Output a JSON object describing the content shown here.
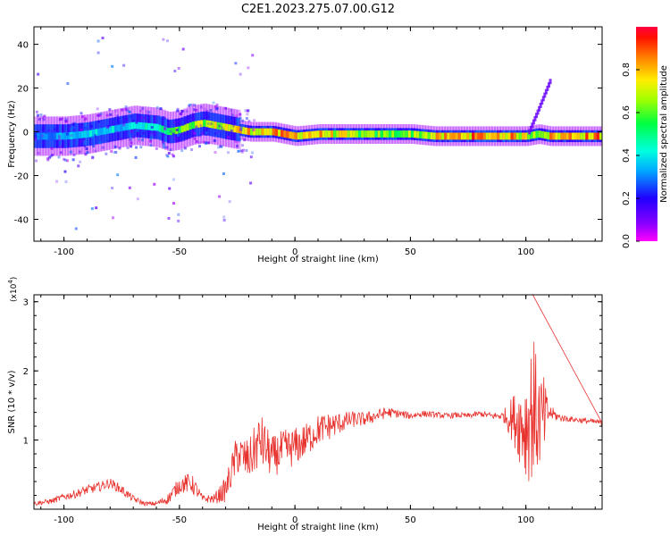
{
  "title": "C2E1.2023.275.07.00.G12",
  "chart_data": [
    {
      "type": "heatmap",
      "xlabel": "Height of straight line (km)",
      "ylabel": "Frequency (Hz)",
      "xlim": [
        -113,
        133
      ],
      "ylim": [
        -50,
        48
      ],
      "xticks": [
        -100,
        -50,
        0,
        50,
        100
      ],
      "yticks": [
        -40,
        -20,
        0,
        20,
        40
      ],
      "colorbar": {
        "label": "Normalized spectral amplitude",
        "range": [
          0,
          1
        ],
        "ticks": [
          0.0,
          0.2,
          0.4,
          0.6,
          0.8
        ],
        "colormap": "rainbow (violet → blue → cyan → green → yellow → orange → red)"
      },
      "ridge": {
        "description": "Dominant spectral ridge (frequency vs height)",
        "x": [
          -113,
          -100,
          -90,
          -80,
          -70,
          -60,
          -55,
          -50,
          -45,
          -40,
          -35,
          -30,
          -25,
          -20,
          -10,
          0,
          10,
          20,
          30,
          40,
          50,
          60,
          70,
          80,
          90,
          95,
          100,
          105,
          110,
          120,
          133
        ],
        "y": [
          -2,
          -2,
          -1,
          1,
          3,
          2,
          0,
          1,
          3,
          4,
          3,
          2,
          1,
          0,
          0,
          -2,
          -1,
          -1,
          -1,
          -1,
          -1,
          -2,
          -2,
          -2,
          -2,
          -2,
          -2,
          -1,
          -2,
          -2,
          -2
        ],
        "peak_amplitude": [
          0.3,
          0.4,
          0.45,
          0.45,
          0.45,
          0.5,
          0.6,
          0.7,
          0.7,
          0.8,
          0.8,
          0.85,
          0.9,
          0.9,
          0.9,
          0.95,
          0.9,
          0.8,
          0.7,
          0.7,
          0.75,
          0.85,
          0.95,
          0.95,
          0.95,
          0.9,
          0.8,
          0.8,
          0.9,
          0.95,
          0.95
        ]
      },
      "branch": {
        "description": "Rising frequency branch near 100–110 km",
        "x": [
          101,
          105,
          110
        ],
        "y": [
          0,
          10,
          23
        ]
      }
    },
    {
      "type": "line",
      "xlabel": "Height of straight line (km)",
      "ylabel": "SNR (10 * v/v)",
      "yscale_label": "(x10",
      "yscale_exponent": "4",
      "xlim": [
        -113,
        133
      ],
      "ylim": [
        0,
        3.1
      ],
      "xticks": [
        -100,
        -50,
        0,
        50,
        100
      ],
      "yticks": [
        1,
        2,
        3
      ],
      "color": "#e8322e",
      "series": [
        {
          "x": [
            -113,
            -105,
            -100,
            -95,
            -90,
            -85,
            -80,
            -75,
            -70,
            -65,
            -60,
            -55,
            -50,
            -45,
            -42,
            -40,
            -35,
            -30,
            -25,
            -20,
            -15,
            -10,
            -5,
            0,
            5,
            10,
            15,
            20,
            25,
            30,
            35,
            40,
            45,
            50,
            55,
            60,
            65,
            70,
            75,
            80,
            85,
            90,
            95,
            100,
            103,
            105,
            108,
            110,
            115,
            120,
            125,
            133
          ],
          "y": [
            0.08,
            0.12,
            0.18,
            0.22,
            0.28,
            0.32,
            0.38,
            0.28,
            0.15,
            0.08,
            0.08,
            0.15,
            0.35,
            0.38,
            0.25,
            0.15,
            0.15,
            0.28,
            0.8,
            0.7,
            1.0,
            0.75,
            0.85,
            0.9,
            1.0,
            1.15,
            1.2,
            1.25,
            1.3,
            1.3,
            1.35,
            1.4,
            1.38,
            1.35,
            1.38,
            1.37,
            1.35,
            1.36,
            1.35,
            1.38,
            1.35,
            1.35,
            1.3,
            1.2,
            1.5,
            1.3,
            1.3,
            1.4,
            1.32,
            1.3,
            1.28,
            1.25
          ],
          "noise": [
            0.03,
            0.04,
            0.05,
            0.06,
            0.07,
            0.07,
            0.07,
            0.07,
            0.05,
            0.03,
            0.03,
            0.08,
            0.12,
            0.15,
            0.1,
            0.05,
            0.07,
            0.18,
            0.3,
            0.3,
            0.4,
            0.3,
            0.3,
            0.28,
            0.25,
            0.22,
            0.2,
            0.15,
            0.12,
            0.1,
            0.09,
            0.08,
            0.06,
            0.05,
            0.05,
            0.04,
            0.04,
            0.04,
            0.04,
            0.04,
            0.05,
            0.06,
            0.4,
            0.8,
            1.1,
            0.8,
            0.6,
            0.12,
            0.05,
            0.04,
            0.04,
            0.04
          ],
          "max_spike": {
            "x": 103,
            "y": 3.1
          }
        }
      ]
    }
  ]
}
